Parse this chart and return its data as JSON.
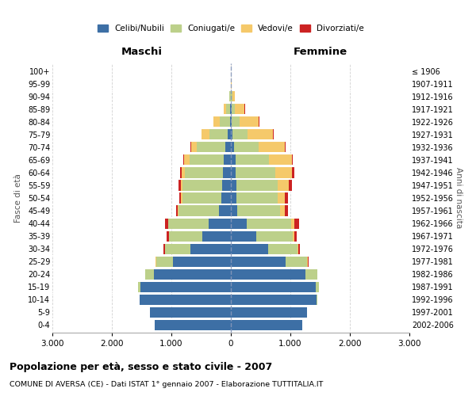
{
  "age_groups": [
    "0-4",
    "5-9",
    "10-14",
    "15-19",
    "20-24",
    "25-29",
    "30-34",
    "35-39",
    "40-44",
    "45-49",
    "50-54",
    "55-59",
    "60-64",
    "65-69",
    "70-74",
    "75-79",
    "80-84",
    "85-89",
    "90-94",
    "95-99",
    "100+"
  ],
  "birth_years": [
    "2002-2006",
    "1997-2001",
    "1992-1996",
    "1987-1991",
    "1982-1986",
    "1977-1981",
    "1972-1976",
    "1967-1971",
    "1962-1966",
    "1957-1961",
    "1952-1956",
    "1947-1951",
    "1942-1946",
    "1937-1941",
    "1932-1936",
    "1927-1931",
    "1922-1926",
    "1917-1921",
    "1912-1916",
    "1907-1911",
    "≤ 1906"
  ],
  "male_celibi": [
    1280,
    1360,
    1530,
    1520,
    1300,
    980,
    680,
    480,
    370,
    200,
    160,
    150,
    130,
    120,
    90,
    50,
    20,
    10,
    5,
    2,
    2
  ],
  "male_coniugati": [
    1,
    2,
    5,
    40,
    140,
    280,
    430,
    560,
    680,
    680,
    660,
    660,
    640,
    580,
    480,
    310,
    170,
    70,
    20,
    2,
    0
  ],
  "male_vedovi": [
    0,
    0,
    0,
    0,
    0,
    1,
    2,
    5,
    10,
    15,
    20,
    30,
    60,
    90,
    100,
    130,
    100,
    40,
    8,
    1,
    0
  ],
  "male_divorziati": [
    0,
    0,
    0,
    1,
    3,
    10,
    20,
    30,
    50,
    30,
    30,
    35,
    25,
    10,
    8,
    5,
    5,
    2,
    0,
    0,
    0
  ],
  "female_celibi": [
    1200,
    1280,
    1440,
    1420,
    1250,
    920,
    620,
    420,
    260,
    100,
    90,
    90,
    80,
    80,
    50,
    30,
    15,
    10,
    5,
    2,
    2
  ],
  "female_coniugati": [
    1,
    3,
    10,
    60,
    200,
    360,
    500,
    620,
    750,
    720,
    690,
    690,
    660,
    560,
    420,
    250,
    130,
    60,
    15,
    2,
    0
  ],
  "female_vedovi": [
    0,
    0,
    0,
    1,
    3,
    8,
    15,
    30,
    60,
    90,
    130,
    190,
    290,
    380,
    430,
    430,
    320,
    160,
    50,
    5,
    1
  ],
  "female_divorziati": [
    0,
    0,
    0,
    2,
    5,
    15,
    25,
    40,
    80,
    55,
    50,
    55,
    40,
    20,
    15,
    10,
    10,
    5,
    2,
    0,
    0
  ],
  "colors": {
    "celibi": "#3d6fa5",
    "coniugati": "#bcd08a",
    "vedovi": "#f5c96a",
    "divorziati": "#cc2222"
  },
  "title": "Popolazione per età, sesso e stato civile - 2007",
  "subtitle": "COMUNE DI AVERSA (CE) - Dati ISTAT 1° gennaio 2007 - Elaborazione TUTTITALIA.IT",
  "xlabel_left": "Maschi",
  "xlabel_right": "Femmine",
  "ylabel_left": "Fasce di età",
  "ylabel_right": "Anni di nascita",
  "xlim": 3000,
  "xtick_labels": [
    "3.000",
    "2.000",
    "1.000",
    "0",
    "1.000",
    "2.000",
    "3.000"
  ],
  "bg_color": "#ffffff",
  "grid_color": "#cccccc"
}
